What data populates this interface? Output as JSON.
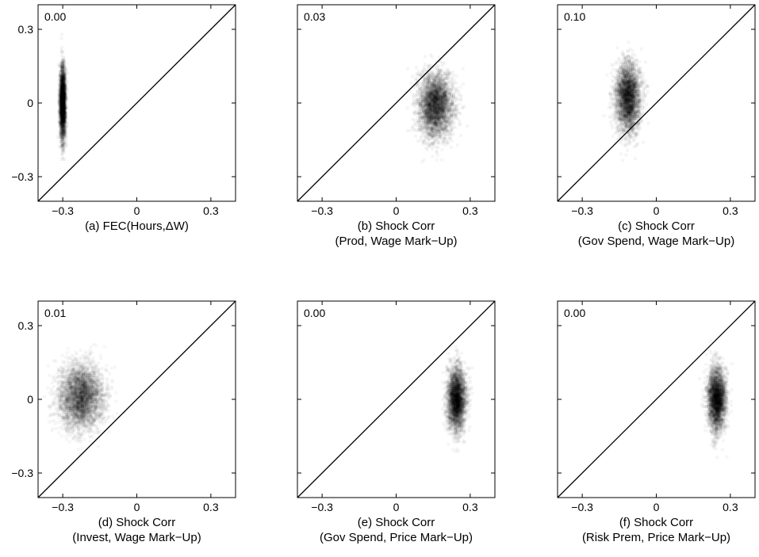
{
  "figure": {
    "panel_count": 6,
    "colors": {
      "cloud": "#000000",
      "axis": "#000000",
      "diagonal": "#000000",
      "background": "#ffffff"
    }
  },
  "chart_data": [
    {
      "type": "scatter",
      "caption": [
        "(a) FEC(Hours,ΔW)"
      ],
      "corner_label": "0.00",
      "xlim": [
        -0.4,
        0.4
      ],
      "ylim": [
        -0.4,
        0.4
      ],
      "xticks": [
        -0.3,
        0,
        0.3
      ],
      "xtick_labels": [
        "−0.3",
        "0",
        "0.3"
      ],
      "yticks": [
        -0.3,
        0,
        0.3
      ],
      "ytick_labels": [
        "−0.3",
        "0",
        "0.3"
      ],
      "reference_line": "y = x",
      "density_cloud": {
        "x_center": -0.3,
        "y_center": 0.0,
        "x_sd": 0.006,
        "y_sd": 0.075,
        "peak_density": 0.9,
        "sample_points": 2600
      },
      "grid": false,
      "legend": "none"
    },
    {
      "type": "scatter",
      "caption": [
        "(b) Shock Corr",
        "(Prod, Wage Mark−Up)"
      ],
      "corner_label": "0.03",
      "xlim": [
        -0.4,
        0.4
      ],
      "ylim": [
        -0.4,
        0.4
      ],
      "xticks": [
        -0.3,
        0,
        0.3
      ],
      "xtick_labels": [
        "−0.3",
        "0",
        "0.3"
      ],
      "yticks": [
        -0.3,
        0,
        0.3
      ],
      "ytick_labels": [],
      "reference_line": "y = x",
      "density_cloud": {
        "x_center": 0.16,
        "y_center": -0.01,
        "x_sd": 0.035,
        "y_sd": 0.065,
        "peak_density": 0.85,
        "sample_points": 3400
      },
      "grid": false,
      "legend": "none"
    },
    {
      "type": "scatter",
      "caption": [
        "(c) Shock Corr",
        "(Gov Spend, Wage Mark−Up)"
      ],
      "corner_label": "0.10",
      "xlim": [
        -0.4,
        0.4
      ],
      "ylim": [
        -0.4,
        0.4
      ],
      "xticks": [
        -0.3,
        0,
        0.3
      ],
      "xtick_labels": [
        "−0.3",
        "0",
        "0.3"
      ],
      "yticks": [
        -0.3,
        0,
        0.3
      ],
      "ytick_labels": [],
      "reference_line": "y = x",
      "density_cloud": {
        "x_center": -0.115,
        "y_center": 0.02,
        "x_sd": 0.025,
        "y_sd": 0.07,
        "peak_density": 0.85,
        "sample_points": 3200
      },
      "grid": false,
      "legend": "none"
    },
    {
      "type": "scatter",
      "caption": [
        "(d) Shock Corr",
        "(Invest, Wage Mark−Up)"
      ],
      "corner_label": "0.01",
      "xlim": [
        -0.4,
        0.4
      ],
      "ylim": [
        -0.4,
        0.4
      ],
      "xticks": [
        -0.3,
        0,
        0.3
      ],
      "xtick_labels": [
        "−0.3",
        "0",
        "0.3"
      ],
      "yticks": [
        -0.3,
        0,
        0.3
      ],
      "ytick_labels": [
        "−0.3",
        "0",
        "0.3"
      ],
      "reference_line": "y = x",
      "density_cloud": {
        "x_center": -0.225,
        "y_center": 0.01,
        "x_sd": 0.045,
        "y_sd": 0.065,
        "peak_density": 0.8,
        "sample_points": 3600
      },
      "grid": false,
      "legend": "none"
    },
    {
      "type": "scatter",
      "caption": [
        "(e) Shock Corr",
        "(Gov Spend, Price Mark−Up)"
      ],
      "corner_label": "0.00",
      "xlim": [
        -0.4,
        0.4
      ],
      "ylim": [
        -0.4,
        0.4
      ],
      "xticks": [
        -0.3,
        0,
        0.3
      ],
      "xtick_labels": [
        "−0.3",
        "0",
        "0.3"
      ],
      "yticks": [
        -0.3,
        0,
        0.3
      ],
      "ytick_labels": [],
      "reference_line": "y = x",
      "density_cloud": {
        "x_center": 0.245,
        "y_center": 0.0,
        "x_sd": 0.018,
        "y_sd": 0.065,
        "peak_density": 0.85,
        "sample_points": 3000
      },
      "grid": false,
      "legend": "none"
    },
    {
      "type": "scatter",
      "caption": [
        "(f) Shock Corr",
        "(Risk Prem, Price Mark−Up)"
      ],
      "corner_label": "0.00",
      "xlim": [
        -0.4,
        0.4
      ],
      "ylim": [
        -0.4,
        0.4
      ],
      "xticks": [
        -0.3,
        0,
        0.3
      ],
      "xtick_labels": [
        "−0.3",
        "0",
        "0.3"
      ],
      "yticks": [
        -0.3,
        0,
        0.3
      ],
      "ytick_labels": [],
      "reference_line": "y = x",
      "density_cloud": {
        "x_center": 0.245,
        "y_center": 0.0,
        "x_sd": 0.018,
        "y_sd": 0.065,
        "peak_density": 0.85,
        "sample_points": 3000
      },
      "grid": false,
      "legend": "none"
    }
  ]
}
